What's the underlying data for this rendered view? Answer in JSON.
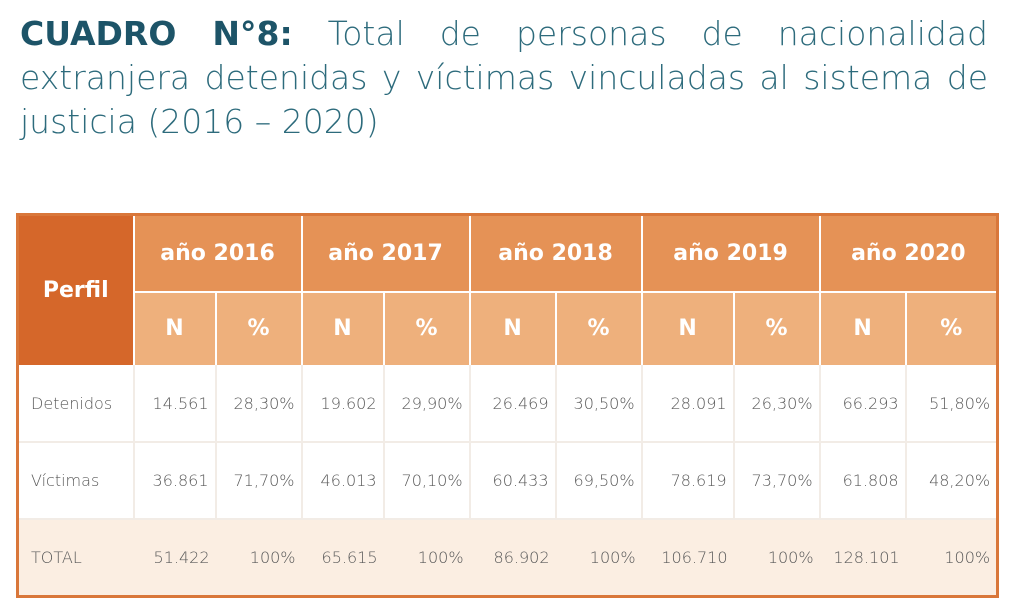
{
  "title": {
    "lead": "CUADRO N°8:",
    "text": " Total de personas de nacionalidad extranjera detenidas y víctimas vinculadas al sistema de justicia (2016 – 2020)"
  },
  "table": {
    "profile_header": "Perfil",
    "years": [
      "año 2016",
      "año 2017",
      "año 2018",
      "año 2019",
      "año 2020"
    ],
    "sub_headers": [
      "N",
      "%"
    ],
    "rows": [
      {
        "label": "Detenidos",
        "values": [
          "14.561",
          "28,30%",
          "19.602",
          "29,90%",
          "26.469",
          "30,50%",
          "28.091",
          "26,30%",
          "66.293",
          "51,80%"
        ]
      },
      {
        "label": "Víctimas",
        "values": [
          "36.861",
          "71,70%",
          "46.013",
          "70,10%",
          "60.433",
          "69,50%",
          "78.619",
          "73,70%",
          "61.808",
          "48,20%"
        ]
      },
      {
        "label": "TOTAL",
        "values": [
          "51.422",
          "100%",
          "65.615",
          "100%",
          "86.902",
          "100%",
          "106.710",
          "100%",
          "128.101",
          "100%"
        ]
      }
    ]
  },
  "colors": {
    "title": "#2d6b7c",
    "profile_header_bg": "#d5672a",
    "year_header_bg": "#e59256",
    "sub_header_bg": "#eeb07c",
    "total_row_bg": "#fbeee2"
  }
}
